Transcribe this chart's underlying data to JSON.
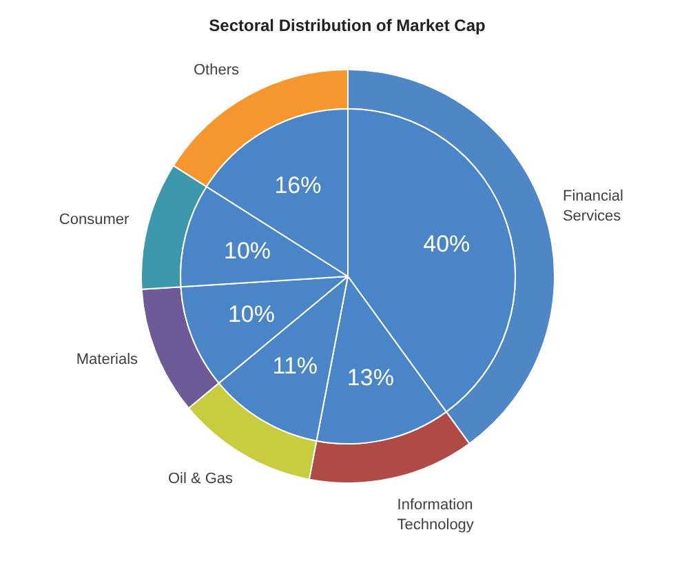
{
  "chart_data": {
    "type": "pie",
    "title": "Sectoral Distribution of Market Cap",
    "categories": [
      "Financial Services",
      "Information Technology",
      "Oil & Gas",
      "Materials",
      "Consumer",
      "Others"
    ],
    "series": [
      {
        "values": [
          40,
          13,
          11,
          10,
          10,
          16
        ],
        "colors": [
          "#4f86c6",
          "#b04a45",
          "#c8cc3f",
          "#6f5a98",
          "#3d97ad",
          "#f5962f"
        ]
      },
      {
        "values": [
          40,
          13,
          11,
          10,
          10,
          16
        ],
        "colors": [
          "#4a85c8",
          "#4a85c8",
          "#4a85c8",
          "#4a85c8",
          "#4a85c8",
          "#4a85c8"
        ],
        "value_labels": [
          "40%",
          "13%",
          "11%",
          "10%",
          "10%",
          "16%"
        ]
      }
    ]
  }
}
